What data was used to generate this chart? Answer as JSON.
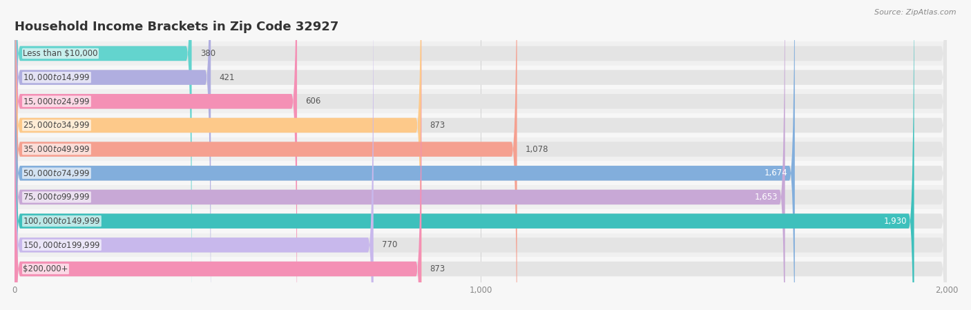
{
  "title": "Household Income Brackets in Zip Code 32927",
  "source": "Source: ZipAtlas.com",
  "categories": [
    "Less than $10,000",
    "$10,000 to $14,999",
    "$15,000 to $24,999",
    "$25,000 to $34,999",
    "$35,000 to $49,999",
    "$50,000 to $74,999",
    "$75,000 to $99,999",
    "$100,000 to $149,999",
    "$150,000 to $199,999",
    "$200,000+"
  ],
  "values": [
    380,
    421,
    606,
    873,
    1078,
    1674,
    1653,
    1930,
    770,
    873
  ],
  "colors": [
    "#63d4ce",
    "#b0aee0",
    "#f490b5",
    "#fdc98a",
    "#f5a090",
    "#82aedc",
    "#c8a8d6",
    "#3ec0bc",
    "#c8b8ec",
    "#f490b5"
  ],
  "bg_bar_color": "#e4e4e4",
  "xlim_max": 2000,
  "background_color": "#f7f7f7",
  "row_bg_colors": [
    "#f0f0f0",
    "#f7f7f7"
  ],
  "title_fontsize": 13,
  "label_fontsize": 8.5,
  "value_fontsize": 8.5,
  "bar_height": 0.62,
  "value_labels_inside": [
    5,
    6,
    7
  ],
  "value_color_inside": "#ffffff",
  "value_color_outside": "#555555"
}
